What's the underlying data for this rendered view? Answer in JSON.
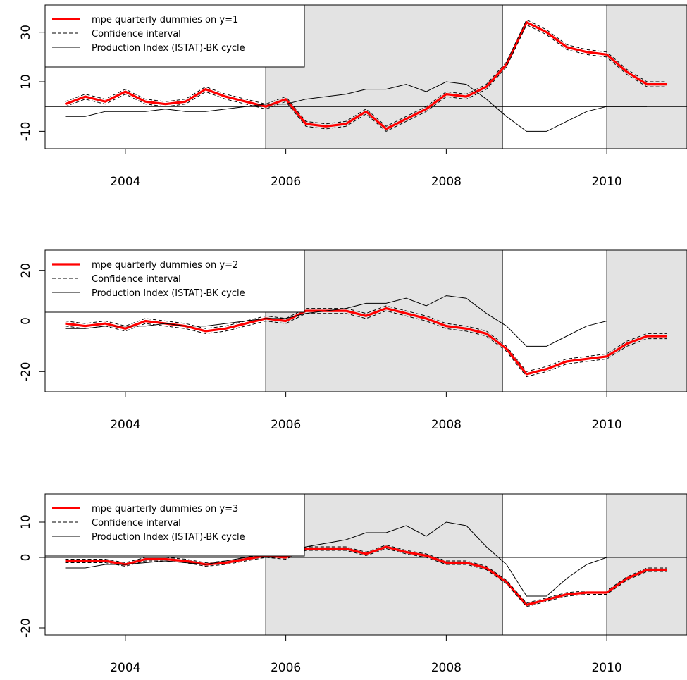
{
  "figure": {
    "colors": {
      "fit": "#ff0000",
      "ci": "#000000",
      "cycle": "#000000",
      "shade": "#e3e3e3",
      "frame": "#000000"
    }
  },
  "chart_data": [
    {
      "type": "line",
      "x_ticks": [
        2004,
        2006,
        2008,
        2010
      ],
      "y_ticks": [
        -10,
        10,
        30
      ],
      "xlim": [
        2003.0,
        2011.0
      ],
      "ylim": [
        -17,
        41
      ],
      "grid": false,
      "legend_position": "top-left",
      "legend": [
        "mpe quarterly dummies on y=1",
        "Confidence interval",
        "Production Index (ISTAT)-BK cycle"
      ],
      "shaded_periods": [
        [
          2005.75,
          2008.7
        ],
        [
          2010.0,
          2011.0
        ]
      ],
      "reference_lines": {
        "h": [
          0
        ],
        "v": [
          2005.75,
          2008.7,
          2010.0
        ]
      },
      "x": [
        2003.25,
        2003.5,
        2003.75,
        2004.0,
        2004.25,
        2004.5,
        2004.75,
        2005.0,
        2005.25,
        2005.5,
        2005.75,
        2006.0,
        2006.25,
        2006.5,
        2006.75,
        2007.0,
        2007.25,
        2007.5,
        2007.75,
        2008.0,
        2008.25,
        2008.5,
        2008.75,
        2009.0,
        2009.25,
        2009.5,
        2009.75,
        2010.0,
        2010.25,
        2010.5,
        2010.75
      ],
      "series": [
        {
          "name": "mpe quarterly dummies on y=1",
          "style": "fit",
          "values": [
            1,
            4,
            2,
            6,
            2,
            1,
            2,
            7,
            4,
            2,
            0,
            3,
            -7,
            -8,
            -7,
            -2,
            -9,
            -5,
            -1,
            5,
            4,
            8,
            17,
            34,
            30,
            24,
            22,
            21,
            14,
            9,
            9
          ]
        },
        {
          "name": "Confidence interval",
          "style": "ci",
          "values": [
            2,
            5,
            3,
            7,
            3,
            2,
            3,
            8,
            5,
            3,
            1,
            4,
            -6,
            -7,
            -6,
            -1,
            -8,
            -4,
            0,
            6,
            5,
            9,
            18,
            35,
            31,
            25,
            23,
            22,
            15,
            10,
            10
          ]
        },
        {
          "name": "Confidence interval",
          "style": "ci",
          "values": [
            0,
            3,
            1,
            5,
            1,
            0,
            1,
            6,
            3,
            1,
            -1,
            2,
            -8,
            -9,
            -8,
            -3,
            -10,
            -6,
            -2,
            4,
            3,
            7,
            16,
            33,
            29,
            23,
            21,
            20,
            13,
            8,
            8
          ]
        },
        {
          "name": "Production Index (ISTAT)-BK cycle",
          "style": "cycle",
          "values": [
            -4,
            -4,
            -2,
            -2,
            -2,
            -1,
            -2,
            -2,
            -1,
            0,
            1,
            1,
            3,
            4,
            5,
            7,
            7,
            9,
            6,
            10,
            9,
            3,
            -4,
            -10,
            -10,
            -6,
            -2,
            0,
            0,
            0,
            null
          ]
        }
      ]
    },
    {
      "type": "line",
      "x_ticks": [
        2004,
        2006,
        2008,
        2010
      ],
      "y_ticks": [
        -20,
        0,
        20
      ],
      "xlim": [
        2003.0,
        2011.0
      ],
      "ylim": [
        -28,
        28
      ],
      "grid": false,
      "legend_position": "top-left",
      "legend": [
        "mpe quarterly dummies on y=2",
        "Confidence interval",
        "Production Index (ISTAT)-BK cycle"
      ],
      "shaded_periods": [
        [
          2005.75,
          2008.7
        ],
        [
          2010.0,
          2011.0
        ]
      ],
      "reference_lines": {
        "h": [
          0
        ],
        "v": [
          2005.75,
          2008.7,
          2010.0
        ]
      },
      "x": [
        2003.25,
        2003.5,
        2003.75,
        2004.0,
        2004.25,
        2004.5,
        2004.75,
        2005.0,
        2005.25,
        2005.5,
        2005.75,
        2006.0,
        2006.25,
        2006.5,
        2006.75,
        2007.0,
        2007.25,
        2007.5,
        2007.75,
        2008.0,
        2008.25,
        2008.5,
        2008.75,
        2009.0,
        2009.25,
        2009.5,
        2009.75,
        2010.0,
        2010.25,
        2010.5,
        2010.75
      ],
      "series": [
        {
          "name": "mpe quarterly dummies on y=2",
          "style": "fit",
          "values": [
            -1,
            -2,
            -1,
            -3,
            0,
            -1,
            -2,
            -4,
            -3,
            -1,
            1,
            0,
            4,
            4,
            4,
            2,
            5,
            3,
            1,
            -2,
            -3,
            -5,
            -11,
            -21,
            -19,
            -16,
            -15,
            -14,
            -9,
            -6,
            -6
          ]
        },
        {
          "name": "Confidence interval",
          "style": "ci",
          "values": [
            0,
            -1,
            0,
            -2,
            1,
            0,
            -1,
            -3,
            -2,
            0,
            2,
            1,
            5,
            5,
            5,
            3,
            6,
            4,
            2,
            -1,
            -2,
            -4,
            -10,
            -20,
            -18,
            -15,
            -14,
            -13,
            -8,
            -5,
            -5
          ]
        },
        {
          "name": "Confidence interval",
          "style": "ci",
          "values": [
            -2,
            -3,
            -2,
            -4,
            -1,
            -2,
            -3,
            -5,
            -4,
            -2,
            0,
            -1,
            3,
            3,
            3,
            1,
            4,
            2,
            0,
            -3,
            -4,
            -6,
            -12,
            -22,
            -20,
            -17,
            -16,
            -15,
            -10,
            -7,
            -7
          ]
        },
        {
          "name": "Production Index (ISTAT)-BK cycle",
          "style": "cycle",
          "values": [
            -3,
            -3,
            -2,
            -2,
            -2,
            -1,
            -2,
            -2,
            -1,
            0,
            1,
            1,
            3,
            4,
            5,
            7,
            7,
            9,
            6,
            10,
            9,
            3,
            -2,
            -10,
            -10,
            -6,
            -2,
            0,
            0,
            0,
            null
          ]
        }
      ]
    },
    {
      "type": "line",
      "x_ticks": [
        2004,
        2006,
        2008,
        2010
      ],
      "y_ticks": [
        -20,
        0,
        10
      ],
      "xlim": [
        2003.0,
        2011.0
      ],
      "ylim": [
        -22,
        18
      ],
      "grid": false,
      "legend_position": "top-left",
      "legend": [
        "mpe quarterly dummies on y=3",
        "Confidence interval",
        "Production Index (ISTAT)-BK cycle"
      ],
      "shaded_periods": [
        [
          2005.75,
          2008.7
        ],
        [
          2010.0,
          2011.0
        ]
      ],
      "reference_lines": {
        "h": [
          0
        ],
        "v": [
          2005.75,
          2008.7,
          2010.0
        ]
      },
      "x": [
        2003.25,
        2003.5,
        2003.75,
        2004.0,
        2004.25,
        2004.5,
        2004.75,
        2005.0,
        2005.25,
        2005.5,
        2005.75,
        2006.0,
        2006.25,
        2006.5,
        2006.75,
        2007.0,
        2007.25,
        2007.5,
        2007.75,
        2008.0,
        2008.25,
        2008.5,
        2008.75,
        2009.0,
        2009.25,
        2009.5,
        2009.75,
        2010.0,
        2010.25,
        2010.5,
        2010.75
      ],
      "series": [
        {
          "name": "mpe quarterly dummies on y=3",
          "style": "fit",
          "values": [
            -1,
            -1,
            -1,
            -2,
            -0.5,
            -0.5,
            -1,
            -2,
            -1.5,
            -0.5,
            0.5,
            0,
            2.5,
            2.5,
            2.5,
            1,
            3,
            1.5,
            0.5,
            -1.5,
            -1.5,
            -3,
            -7,
            -13.5,
            -12,
            -10.5,
            -10,
            -10,
            -6,
            -3.5,
            -3.5
          ]
        },
        {
          "name": "Confidence interval",
          "style": "ci",
          "values": [
            -0.5,
            -0.5,
            -0.5,
            -1.5,
            0,
            0,
            -0.5,
            -1.5,
            -1,
            0,
            1,
            0.5,
            3,
            3,
            3,
            1.5,
            3.5,
            2,
            1,
            -1,
            -1,
            -2.5,
            -6.5,
            -13,
            -11.5,
            -10,
            -9.5,
            -9.5,
            -5.5,
            -3,
            -3
          ]
        },
        {
          "name": "Confidence interval",
          "style": "ci",
          "values": [
            -1.5,
            -1.5,
            -1.5,
            -2.5,
            -1,
            -1,
            -1.5,
            -2.5,
            -2,
            -1,
            0,
            -0.5,
            2,
            2,
            2,
            0.5,
            2.5,
            1,
            0,
            -2,
            -2,
            -3.5,
            -7.5,
            -14,
            -12.5,
            -11,
            -10.5,
            -10.5,
            -6.5,
            -4,
            -4
          ]
        },
        {
          "name": "Production Index (ISTAT)-BK cycle",
          "style": "cycle",
          "values": [
            -3,
            -3,
            -2,
            -2,
            -1.5,
            -1,
            -1.5,
            -2,
            -1,
            0,
            1,
            1,
            3,
            4,
            5,
            7,
            7,
            9,
            6,
            10,
            9,
            3,
            -2,
            -11,
            -11,
            -6,
            -2,
            0,
            0,
            0,
            null
          ]
        }
      ]
    }
  ]
}
